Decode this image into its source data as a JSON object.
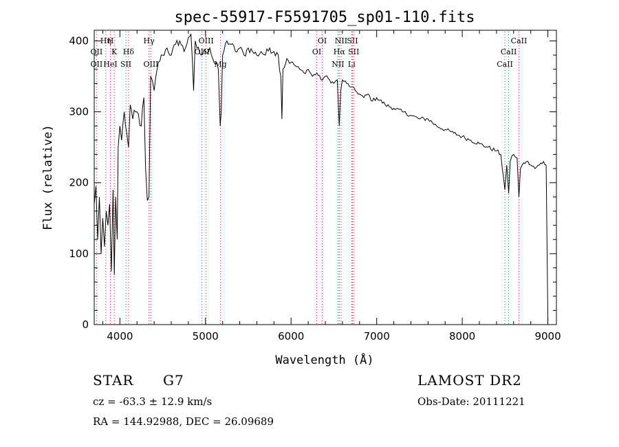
{
  "chart_data": {
    "type": "line",
    "title": "spec-55917-F5591705_sp01-110.fits",
    "xlabel": "Wavelength (Å)",
    "ylabel": "Flux (relative)",
    "xlim": [
      3700,
      9100
    ],
    "ylim": [
      0,
      415
    ],
    "xticks": [
      4000,
      5000,
      6000,
      7000,
      8000,
      9000
    ],
    "yticks": [
      0,
      100,
      200,
      300,
      400
    ],
    "grid": false,
    "series": [
      {
        "x": [
          3700,
          3720,
          3740,
          3760,
          3780,
          3800,
          3820,
          3840,
          3860,
          3880,
          3900,
          3920,
          3935,
          3950,
          3968,
          3980,
          4000,
          4020,
          4050,
          4080,
          4101,
          4120,
          4150,
          4200,
          4250,
          4280,
          4300,
          4320,
          4340,
          4360,
          4400,
          4450,
          4500,
          4550,
          4600,
          4650,
          4700,
          4750,
          4800,
          4830,
          4861,
          4880,
          4900,
          4950,
          5000,
          5050,
          5100,
          5150,
          5172,
          5183,
          5200,
          5250,
          5300,
          5350,
          5400,
          5450,
          5500,
          5550,
          5600,
          5650,
          5700,
          5750,
          5800,
          5850,
          5880,
          5893,
          5905,
          5950,
          6000,
          6050,
          6100,
          6150,
          6200,
          6250,
          6300,
          6350,
          6400,
          6450,
          6500,
          6540,
          6563,
          6580,
          6600,
          6650,
          6700,
          6750,
          6800,
          6850,
          6900,
          6950,
          7000,
          7100,
          7200,
          7300,
          7400,
          7500,
          7600,
          7700,
          7800,
          7900,
          8000,
          8100,
          8200,
          8300,
          8400,
          8450,
          8498,
          8520,
          8542,
          8560,
          8600,
          8640,
          8662,
          8680,
          8700,
          8750,
          8800,
          8850,
          8900,
          8950,
          8980,
          9000
        ],
        "y": [
          170,
          195,
          120,
          180,
          100,
          150,
          110,
          160,
          140,
          170,
          75,
          190,
          70,
          180,
          120,
          250,
          280,
          260,
          300,
          270,
          250,
          310,
          290,
          300,
          280,
          320,
          220,
          175,
          180,
          350,
          330,
          370,
          380,
          390,
          380,
          395,
          400,
          385,
          405,
          410,
          330,
          400,
          390,
          380,
          385,
          390,
          370,
          360,
          280,
          300,
          380,
          400,
          395,
          385,
          390,
          380,
          390,
          385,
          380,
          385,
          380,
          390,
          385,
          380,
          350,
          290,
          360,
          375,
          370,
          365,
          360,
          355,
          360,
          350,
          355,
          345,
          350,
          345,
          340,
          345,
          280,
          330,
          345,
          340,
          335,
          330,
          325,
          320,
          325,
          315,
          320,
          310,
          305,
          300,
          295,
          290,
          290,
          280,
          275,
          270,
          265,
          260,
          255,
          250,
          245,
          240,
          190,
          225,
          185,
          230,
          240,
          235,
          180,
          220,
          225,
          230,
          225,
          220,
          225,
          230,
          225,
          5
        ]
      }
    ],
    "lines": [
      {
        "label": "Hη",
        "x": 3835,
        "row": 0
      },
      {
        "label": "H",
        "x": 3889,
        "row": 0
      },
      {
        "label": "K",
        "x": 3934,
        "row": 1
      },
      {
        "label": "Hδ",
        "x": 4101,
        "row": 1
      },
      {
        "label": "OII",
        "x": 3727,
        "row": 1
      },
      {
        "label": "OII",
        "x": 3727,
        "row": 2
      },
      {
        "label": "HeI",
        "x": 3889,
        "row": 2
      },
      {
        "label": "SII",
        "x": 4070,
        "row": 2
      },
      {
        "label": "Hγ",
        "x": 4340,
        "row": 0
      },
      {
        "label": "OIII",
        "x": 4363,
        "row": 2
      },
      {
        "label": "OIII",
        "x": 5007,
        "row": 0
      },
      {
        "label": "OIII",
        "x": 4959,
        "row": 1
      },
      {
        "label": "Mg",
        "x": 5175,
        "row": 2
      },
      {
        "label": "OI",
        "x": 6364,
        "row": 0
      },
      {
        "label": "OI",
        "x": 6300,
        "row": 1
      },
      {
        "label": "NII",
        "x": 6584,
        "row": 0
      },
      {
        "label": "SII",
        "x": 6717,
        "row": 0
      },
      {
        "label": "Hα",
        "x": 6563,
        "row": 1
      },
      {
        "label": "SII",
        "x": 6731,
        "row": 1
      },
      {
        "label": "NII",
        "x": 6548,
        "row": 2
      },
      {
        "label": "Li",
        "x": 6708,
        "row": 2
      },
      {
        "label": "CaII",
        "x": 8662,
        "row": 0
      },
      {
        "label": "CaII",
        "x": 8542,
        "row": 1
      },
      {
        "label": "CaII",
        "x": 8498,
        "row": 2
      }
    ],
    "line_color": "#c62828"
  },
  "info": {
    "object_class": "STAR",
    "subclass": "G7",
    "survey": "LAMOST DR2",
    "cz": "cz = -63.3 ± 12.9 km/s",
    "obs_date": "Obs-Date: 20111221",
    "coords": "RA = 144.92988, DEC =  26.09689"
  }
}
